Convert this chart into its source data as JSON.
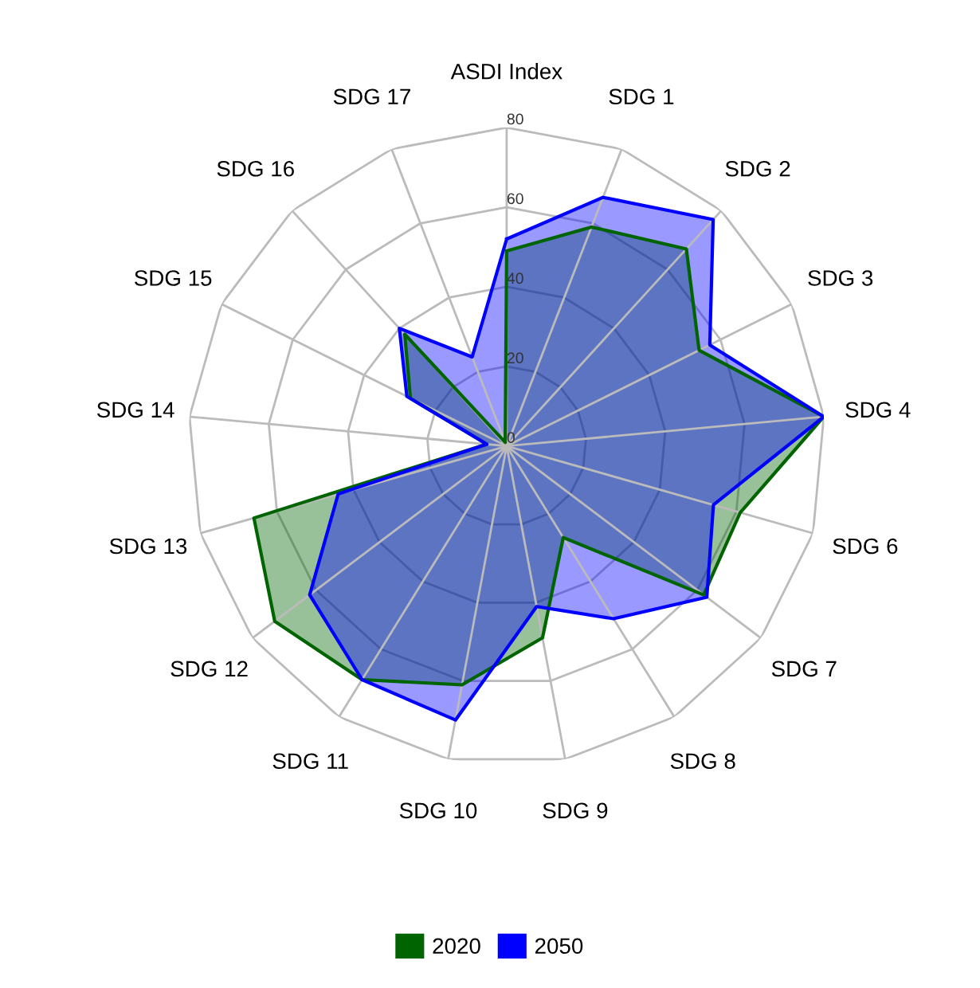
{
  "chart_data": {
    "type": "radar",
    "categories": [
      "ASDI Index",
      "SDG 1",
      "SDG 2",
      "SDG 3",
      "SDG 4",
      "SDG 6",
      "SDG 7",
      "SDG 8",
      "SDG 9",
      "SDG 10",
      "SDG 11",
      "SDG 12",
      "SDG 13",
      "SDG 14",
      "SDG 15",
      "SDG 16",
      "SDG 17"
    ],
    "series": [
      {
        "name": "2020",
        "color": "#006400",
        "values": [
          49,
          59,
          67,
          54,
          80,
          61,
          62,
          27,
          49,
          61,
          69,
          73,
          66,
          5,
          27,
          38,
          1
        ]
      },
      {
        "name": "2050",
        "color": "#0000ff",
        "values": [
          52,
          67,
          77,
          57,
          80,
          54,
          63,
          51,
          41,
          70,
          69,
          62,
          44,
          5,
          28,
          40,
          24
        ]
      }
    ],
    "ylim": [
      0,
      80
    ],
    "yticks": [
      0,
      20,
      40,
      60,
      80
    ],
    "grid": true,
    "legend": "bottom",
    "marker": "none",
    "line_style": "solid"
  }
}
